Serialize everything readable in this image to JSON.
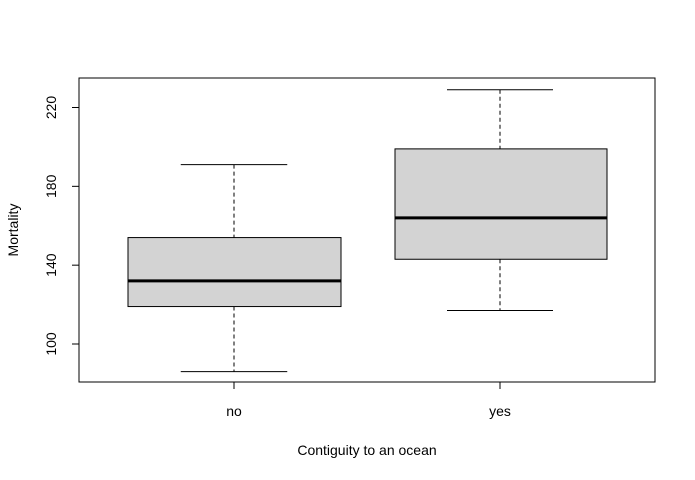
{
  "chart_data": {
    "type": "boxplot",
    "title": "",
    "xlabel": "Contiguity to an ocean",
    "ylabel": "Mortality",
    "categories": [
      "no",
      "yes"
    ],
    "boxes": [
      {
        "category": "no",
        "min": 86,
        "q1": 119,
        "median": 132,
        "q3": 154,
        "max": 191
      },
      {
        "category": "yes",
        "min": 117,
        "q1": 143,
        "median": 164,
        "q3": 199,
        "max": 229
      }
    ],
    "ylim": [
      80,
      230
    ],
    "yticks": [
      100,
      140,
      180,
      220
    ],
    "grid": false,
    "box_fill": "#d3d3d3",
    "line_color": "#000000"
  }
}
